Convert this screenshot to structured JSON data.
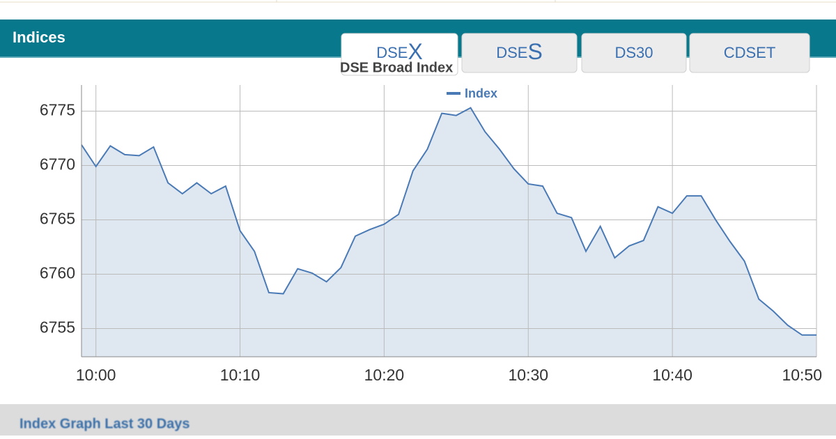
{
  "header": {
    "title": "Indices"
  },
  "tabs": [
    {
      "text": "DSE",
      "accent": "X"
    },
    {
      "text": "DSE",
      "accent": "S"
    },
    {
      "text": "DS30"
    },
    {
      "text": "CDSET"
    }
  ],
  "chart_data": {
    "type": "line",
    "title": "DSE Broad Index",
    "x": [
      "9:59",
      "10:00",
      "10:01",
      "10:02",
      "10:03",
      "10:04",
      "10:05",
      "10:06",
      "10:07",
      "10:08",
      "10:09",
      "10:10",
      "10:11",
      "10:12",
      "10:13",
      "10:14",
      "10:15",
      "10:16",
      "10:17",
      "10:18",
      "10:19",
      "10:20",
      "10:21",
      "10:22",
      "10:23",
      "10:24",
      "10:25",
      "10:26",
      "10:27",
      "10:28",
      "10:29",
      "10:30",
      "10:31",
      "10:32",
      "10:33",
      "10:34",
      "10:35",
      "10:36",
      "10:37",
      "10:38",
      "10:39",
      "10:40",
      "10:41",
      "10:42",
      "10:43",
      "10:44",
      "10:45",
      "10:46",
      "10:47",
      "10:48",
      "10:49",
      "10:50"
    ],
    "series": [
      {
        "name": "Index",
        "color": "#4a7ab5",
        "values": [
          6771.9,
          6769.9,
          6771.8,
          6771.0,
          6770.9,
          6771.7,
          6768.4,
          6767.4,
          6768.4,
          6767.4,
          6768.1,
          6764.0,
          6762.1,
          6758.3,
          6758.2,
          6760.5,
          6760.1,
          6759.3,
          6760.6,
          6763.5,
          6764.1,
          6764.6,
          6765.5,
          6769.5,
          6771.5,
          6774.8,
          6774.6,
          6775.3,
          6773.1,
          6771.5,
          6769.7,
          6768.3,
          6768.1,
          6765.6,
          6765.2,
          6762.1,
          6764.4,
          6761.5,
          6762.6,
          6763.1,
          6766.2,
          6765.6,
          6767.2,
          6767.2,
          6765.0,
          6763.0,
          6761.2,
          6757.7,
          6756.6,
          6755.3,
          6754.4,
          6754.4
        ]
      }
    ],
    "xlim": [
      "9:59",
      "10:50"
    ],
    "xticks": [
      "10:00",
      "10:10",
      "10:20",
      "10:30",
      "10:40",
      "10:50"
    ],
    "ylim": [
      6752.4,
      6777.4
    ],
    "yticks": [
      6755,
      6760,
      6765,
      6770,
      6775
    ],
    "grid": true,
    "area_fill": "#dfe7f1",
    "legend": "top"
  },
  "footer": {
    "title": "Index Graph Last 30 Days"
  }
}
